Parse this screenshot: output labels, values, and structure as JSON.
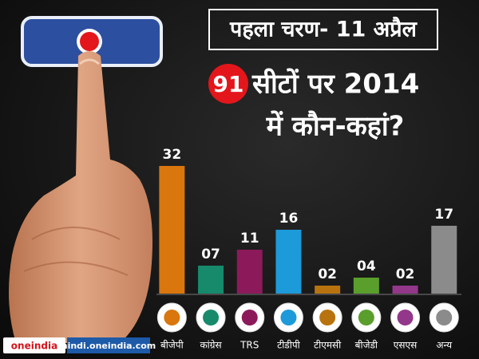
{
  "chart_data": {
    "type": "bar",
    "title": "पहला चरण- 11 अप्रैल",
    "headline": {
      "badge": "91",
      "line1": "सीटों पर 2014",
      "line2": "में कौन-कहां?"
    },
    "categories": [
      "बीजेपी",
      "कांग्रेस",
      "TRS",
      "टीडीपी",
      "टीएमसी",
      "बीजेडी",
      "एसएस",
      "अन्य"
    ],
    "values": [
      32,
      7,
      11,
      16,
      2,
      4,
      2,
      17
    ],
    "value_labels": [
      "32",
      "07",
      "11",
      "16",
      "02",
      "04",
      "02",
      "17"
    ],
    "colors": [
      "#d9760d",
      "#178a6c",
      "#8c1a5b",
      "#1d9ad9",
      "#b8730e",
      "#5a9e2c",
      "#93378a",
      "#8b8b8b"
    ],
    "watermark": {
      "brand": "oneindia",
      "site": "hindi.oneindia.com"
    }
  }
}
